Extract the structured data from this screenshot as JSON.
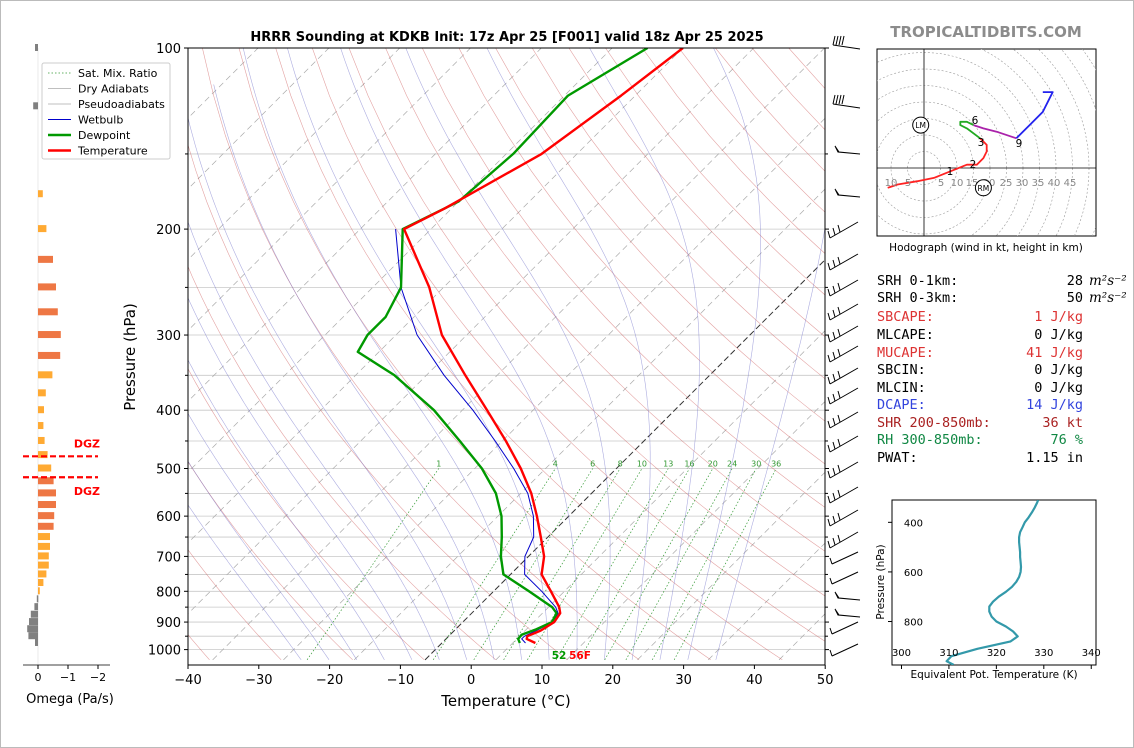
{
  "header": {
    "title": "HRRR Sounding at KDKB Init: 17z Apr 25 [F001] valid 18z Apr 25 2025",
    "brand": "TROPICALTIDBITS.COM"
  },
  "colors": {
    "temperature": "#ff0000",
    "dewpoint": "#009900",
    "wetbulb": "#0000cc",
    "dry_adiabat": "#cc5555",
    "pseudoadiabat": "#7777cc",
    "mixing_ratio": "#339933",
    "isotherm": "#999999",
    "theta_e": "#3399aa",
    "omega_strong": "#ee7744",
    "omega_weak": "#ffaa33",
    "omega_up": "#808080",
    "dgz": "#ff0000",
    "hodo_0_3": "#ff2222",
    "hodo_3_6": "#22aa22",
    "hodo_6_9": "#aa22aa",
    "hodo_9_12": "#2222ee"
  },
  "chart_data": [
    {
      "type": "line",
      "title": "HRRR Sounding at KDKB Init: 17z Apr 25 [F001] valid 18z Apr 25 2025",
      "xlabel": "Temperature (°C)",
      "ylabel": "Pressure (hPa)",
      "xlim": [
        -40,
        50
      ],
      "ylim": [
        1040,
        100
      ],
      "log_y": true,
      "skew": true,
      "x_ticks": [
        -40,
        -30,
        -20,
        -10,
        0,
        10,
        20,
        30,
        40,
        50
      ],
      "x_tick_labels": [
        "−40",
        "−30",
        "−20",
        "−10",
        "0",
        "10",
        "20",
        "30",
        "40",
        "50"
      ],
      "y_ticks": [
        1000,
        900,
        800,
        700,
        600,
        500,
        400,
        300,
        200,
        100
      ],
      "legend": {
        "placement": "top-left",
        "entries": [
          "Sat. Mix. Ratio",
          "Dry Adiabats",
          "Pseudoadiabats",
          "Wetbulb",
          "Dewpoint",
          "Temperature"
        ]
      },
      "mixing_ratio_labels": [
        "1",
        "4",
        "6",
        "8",
        "10",
        "13",
        "16",
        "20",
        "24",
        "30",
        "36"
      ],
      "mixing_ratio_values": [
        1,
        4,
        6,
        8,
        10,
        13,
        16,
        20,
        24,
        30,
        36
      ],
      "surface_dewpoint_label": "52",
      "surface_temperature_label": "56F",
      "series": [
        {
          "name": "Temperature",
          "p": [
            975,
            960,
            950,
            930,
            900,
            870,
            850,
            800,
            750,
            700,
            650,
            600,
            550,
            500,
            450,
            400,
            350,
            300,
            250,
            200,
            185,
            150,
            120,
            100
          ],
          "t": [
            13.2,
            11.4,
            11.1,
            12.2,
            12.9,
            12.5,
            11.5,
            8.1,
            4.4,
            2.2,
            -1.0,
            -4.5,
            -8.5,
            -13.5,
            -19.5,
            -26.5,
            -34.5,
            -43.5,
            -52.0,
            -63.8,
            -61.0,
            -55.0,
            -52.0,
            -50.0
          ]
        },
        {
          "name": "Dewpoint",
          "p": [
            975,
            960,
            945,
            925,
            900,
            870,
            850,
            800,
            750,
            700,
            650,
            600,
            550,
            500,
            450,
            400,
            350,
            320,
            300,
            280,
            250,
            200,
            180,
            150,
            120,
            100
          ],
          "t": [
            11.0,
            10.2,
            10.1,
            11.4,
            12.6,
            12.0,
            10.5,
            5.0,
            -1.0,
            -3.9,
            -6.5,
            -9.5,
            -13.5,
            -19.0,
            -26.0,
            -34.0,
            -44.5,
            -53.0,
            -54.0,
            -54.0,
            -56.0,
            -64.0,
            -60.0,
            -59.0,
            -59.5,
            -55.0
          ]
        },
        {
          "name": "Wetbulb",
          "p": [
            975,
            960,
            950,
            930,
            900,
            870,
            850,
            800,
            750,
            700,
            650,
            600,
            550,
            500,
            450,
            400,
            350,
            300,
            250,
            200
          ],
          "t": [
            11.8,
            10.7,
            10.7,
            11.6,
            12.7,
            12.2,
            11.0,
            6.8,
            2.0,
            -0.5,
            -2.0,
            -5.0,
            -9.0,
            -14.5,
            -21.0,
            -28.5,
            -37.5,
            -47.0,
            -56.0,
            -65.0
          ]
        }
      ]
    },
    {
      "type": "bar",
      "xlabel": "Omega (Pa/s)",
      "x_ticks": [
        0,
        -1,
        -2
      ],
      "x_tick_labels": [
        "0",
        "−1",
        "−2"
      ],
      "dgz_label": "DGZ",
      "dgz_pressures": [
        470,
        525
      ],
      "levels": [
        100,
        125,
        175,
        200,
        225,
        250,
        275,
        300,
        325,
        350,
        375,
        400,
        425,
        450,
        475,
        500,
        525,
        550,
        575,
        600,
        625,
        650,
        675,
        700,
        725,
        750,
        775,
        800,
        825,
        850,
        875,
        900,
        925,
        950,
        975
      ],
      "values": [
        0.05,
        0.08,
        -0.08,
        -0.14,
        -0.25,
        -0.3,
        -0.33,
        -0.38,
        -0.37,
        -0.24,
        -0.13,
        -0.1,
        -0.09,
        -0.11,
        -0.16,
        -0.22,
        -0.26,
        -0.3,
        -0.3,
        -0.27,
        -0.26,
        -0.2,
        -0.2,
        -0.18,
        -0.18,
        -0.14,
        -0.09,
        -0.03,
        0.02,
        0.06,
        0.12,
        0.15,
        0.18,
        0.16,
        0.05
      ]
    },
    {
      "type": "line",
      "title": "Hodograph (wind in kt, height in km)",
      "ring_labels": [
        "10",
        "5",
        "5",
        "10",
        "15",
        "20",
        "25",
        "30",
        "35",
        "40",
        "45"
      ],
      "ring_values": [
        10,
        5,
        5,
        10,
        15,
        20,
        25,
        30,
        35,
        40,
        45
      ],
      "height_labels": [
        "1",
        "2",
        "3",
        "6",
        "9"
      ],
      "storm_motion_labels": [
        "LM",
        "RM"
      ],
      "storm_motion": [
        {
          "u": -1,
          "v": 13
        },
        {
          "u": 18,
          "v": -6
        }
      ],
      "series": [
        {
          "name": "0-3km",
          "u": [
            -11,
            -8,
            -2,
            3,
            8,
            13,
            16,
            18,
            19,
            19,
            17
          ],
          "v": [
            -6,
            -5,
            -4,
            -3,
            -1,
            1,
            1,
            3,
            5,
            7,
            9
          ]
        },
        {
          "name": "3-6km",
          "u": [
            17,
            13,
            11,
            11,
            13,
            15
          ],
          "v": [
            9,
            12,
            13,
            14,
            14,
            13
          ]
        },
        {
          "name": "6-9km",
          "u": [
            15,
            18,
            22,
            28
          ],
          "v": [
            13,
            12,
            11,
            9
          ]
        },
        {
          "name": "9-12km",
          "u": [
            28,
            32,
            36,
            38,
            39,
            38,
            36
          ],
          "v": [
            9,
            13,
            17,
            21,
            23,
            23,
            23
          ]
        }
      ]
    },
    {
      "type": "line",
      "xlabel": "Equivalent Pot. Temperature (K)",
      "ylabel": "Pressure (hPa)",
      "xlim": [
        298,
        341
      ],
      "ylim": [
        975,
        310
      ],
      "x_ticks": [
        300,
        310,
        320,
        330,
        340
      ],
      "x_tick_labels": [
        "300",
        "310",
        "320",
        "330",
        "340"
      ],
      "y_ticks": [
        400,
        600,
        800
      ],
      "y_tick_labels": [
        "400",
        "600",
        "800"
      ],
      "series": [
        {
          "name": "theta-e",
          "p": [
            975,
            960,
            940,
            910,
            880,
            860,
            840,
            820,
            800,
            780,
            760,
            740,
            720,
            700,
            680,
            660,
            640,
            620,
            600,
            580,
            560,
            540,
            520,
            500,
            480,
            460,
            440,
            420,
            400,
            380,
            360,
            340,
            320,
            310
          ],
          "theta_e": [
            311,
            309.5,
            310.5,
            316,
            323,
            324.5,
            323.5,
            322,
            320,
            319,
            318.5,
            318.5,
            319.3,
            320.5,
            322,
            323.3,
            324.2,
            324.8,
            325.1,
            325.2,
            325.1,
            325,
            325,
            324.9,
            324.8,
            324.8,
            325,
            325.5,
            326,
            326.8,
            327.5,
            328.1,
            328.6,
            328.8
          ]
        }
      ]
    }
  ],
  "indices": {
    "srh01_label": "SRH 0-1km:",
    "srh01_value": "28",
    "srh01_unit": "m²s⁻²",
    "srh03_label": "SRH 0-3km:",
    "srh03_value": "50",
    "srh03_unit": "m²s⁻²",
    "sbcape_label": "SBCAPE:",
    "sbcape_value": "1 J/kg",
    "mlcape_label": "MLCAPE:",
    "mlcape_value": "0 J/kg",
    "mucape_label": "MUCAPE:",
    "mucape_value": "41 J/kg",
    "sbcin_label": "SBCIN:",
    "sbcin_value": "0 J/kg",
    "mlcin_label": "MLCIN:",
    "mlcin_value": "0 J/kg",
    "dcape_label": "DCAPE:",
    "dcape_value": "14 J/kg",
    "shr_label": "SHR 200-850mb:",
    "shr_value": "36 kt",
    "rh_label": "RH 300-850mb:",
    "rh_value": "76 %",
    "pwat_label": "PWAT:",
    "pwat_value": "1.15 in"
  }
}
